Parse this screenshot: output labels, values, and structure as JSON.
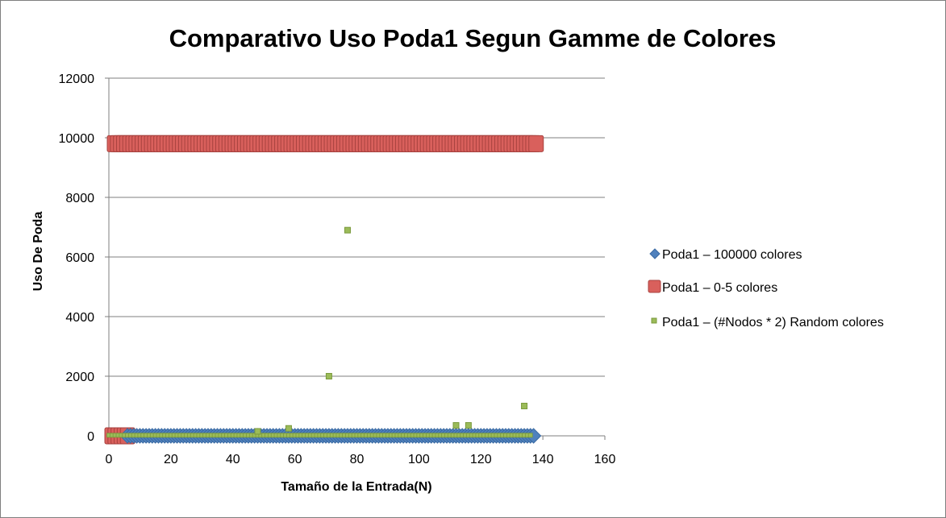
{
  "chart_data": {
    "type": "scatter",
    "title": "Comparativo Uso Poda1 Segun Gamme de Colores",
    "xlabel": "Tamaño de la Entrada(N)",
    "ylabel": "Uso De Poda",
    "xlim": [
      0,
      160
    ],
    "ylim": [
      0,
      12000
    ],
    "x_ticks": [
      "0",
      "20",
      "40",
      "60",
      "80",
      "100",
      "120",
      "140",
      "160"
    ],
    "y_ticks": [
      "0",
      "2000",
      "4000",
      "6000",
      "8000",
      "10000",
      "12000"
    ],
    "grid": "horizontal",
    "legend_position": "right",
    "series": [
      {
        "name": "Poda1 – 100000 colores",
        "marker": "diamond",
        "color": "#4f81bd",
        "x_range": [
          6,
          137
        ],
        "y_constant": 0
      },
      {
        "name": "Poda1 – 0-5 colores",
        "marker": "square",
        "color": "#c0504d",
        "x_range": [
          0,
          136
        ],
        "y_constant": 9800,
        "y_near_zero_points": [
          [
            0,
            0
          ],
          [
            1,
            0
          ],
          [
            2,
            0
          ],
          [
            3,
            0
          ],
          [
            4,
            0
          ],
          [
            5,
            0
          ]
        ]
      },
      {
        "name": "Poda1 – (#Nodos * 2) Random colores",
        "marker": "small-square",
        "color": "#9bbb59",
        "baseline": {
          "x_range": [
            0,
            136
          ],
          "y": 20
        },
        "points": [
          [
            48,
            150
          ],
          [
            58,
            250
          ],
          [
            71,
            2000
          ],
          [
            77,
            6900
          ],
          [
            112,
            350
          ],
          [
            116,
            350
          ],
          [
            134,
            1000
          ]
        ]
      }
    ]
  }
}
